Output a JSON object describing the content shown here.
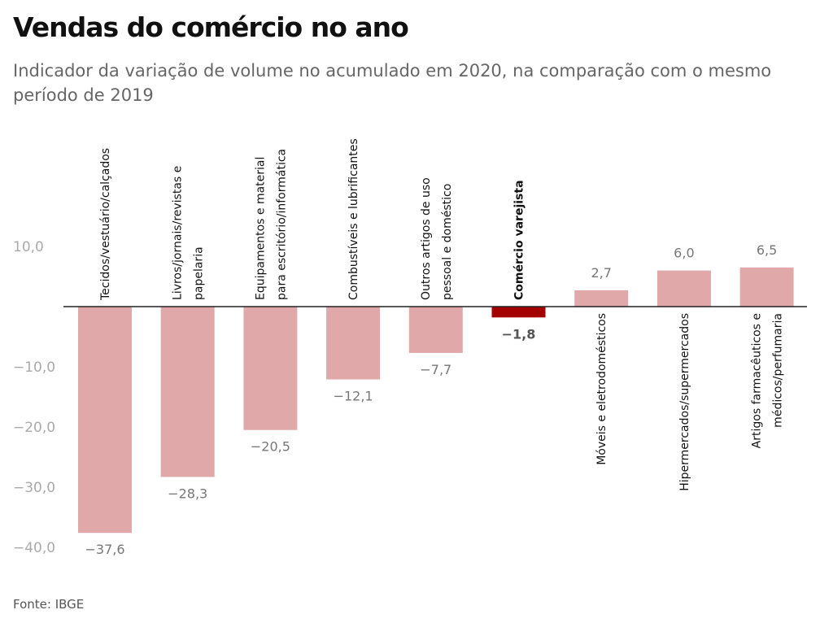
{
  "title": "Vendas do comércio no ano",
  "subtitle": "Indicador da variação de volume no acumulado em 2020, na comparação com o mesmo período de 2019",
  "source": "Fonte: IBGE",
  "colors": {
    "bar": "#e0a8a8",
    "highlight": "#a50000",
    "axis": "#222222"
  },
  "chart_data": {
    "type": "bar",
    "title": "Vendas do comércio no ano",
    "subtitle": "Indicador da variação de volume no acumulado em 2020, na comparação com o mesmo período de 2019",
    "categories": [
      [
        "Tecidos/vestuário/calçados"
      ],
      [
        "Livros/jornais/revistas e",
        "papelaria"
      ],
      [
        "Equipamentos e material",
        "para escritório/informática"
      ],
      [
        "Combustíveis e lubrificantes"
      ],
      [
        "Outros artigos de uso",
        "pessoal e doméstico"
      ],
      [
        "Comércio varejista"
      ],
      [
        "Móveis e eletrodomésticos"
      ],
      [
        "Hipermercados/supermercados"
      ],
      [
        "Artigos farmacêuticos e",
        "médicos/perfumaria"
      ]
    ],
    "values": [
      -37.6,
      -28.3,
      -20.5,
      -12.1,
      -7.7,
      -1.8,
      2.7,
      6.0,
      6.5
    ],
    "value_labels": [
      "−37,6",
      "−28,3",
      "−20,5",
      "−12,1",
      "−7,7",
      "−1,8",
      "2,7",
      "6,0",
      "6,5"
    ],
    "highlight_index": 5,
    "y_ticks": [
      10,
      -10,
      -20,
      -30,
      -40
    ],
    "y_tick_labels": [
      "10,0",
      "−10,0",
      "−20,0",
      "−30,0",
      "−40,0"
    ],
    "ylim": [
      -40,
      10
    ],
    "grid": false,
    "legend": "none"
  }
}
